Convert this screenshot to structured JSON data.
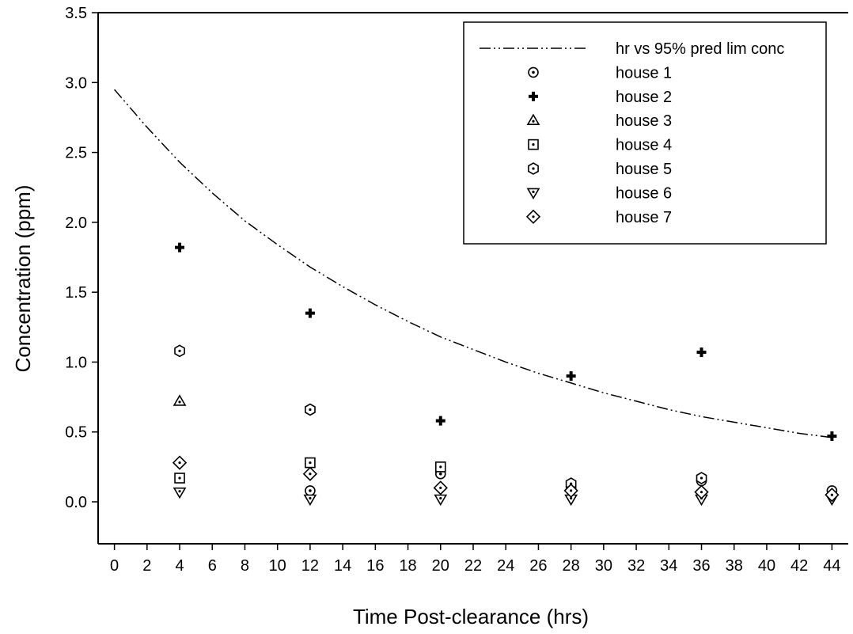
{
  "chart_data": {
    "type": "scatter",
    "title": "",
    "xlabel": "Time Post-clearance (hrs)",
    "ylabel": "Concentration (ppm)",
    "xlim": [
      -1,
      45
    ],
    "ylim": [
      -0.3,
      3.5
    ],
    "x_ticks": [
      0,
      2,
      4,
      6,
      8,
      10,
      12,
      14,
      16,
      18,
      20,
      22,
      24,
      26,
      28,
      30,
      32,
      34,
      36,
      38,
      40,
      42,
      44
    ],
    "y_ticks": [
      0.0,
      0.5,
      1.0,
      1.5,
      2.0,
      2.5,
      3.0,
      3.5
    ],
    "y_tick_labels": [
      "0.0",
      "0.5",
      "1.0",
      "1.5",
      "2.0",
      "2.5",
      "3.0",
      "3.5"
    ],
    "grid": false,
    "legend_position": "top-right",
    "curve": {
      "name": "hr vs 95% pred lim conc",
      "style": "dash-dot-dot",
      "x": [
        0,
        2,
        4,
        6,
        8,
        10,
        12,
        14,
        16,
        18,
        20,
        22,
        24,
        26,
        28,
        30,
        32,
        34,
        36,
        38,
        40,
        42,
        44
      ],
      "y": [
        2.95,
        2.68,
        2.43,
        2.21,
        2.01,
        1.84,
        1.68,
        1.54,
        1.41,
        1.29,
        1.18,
        1.09,
        1.0,
        0.92,
        0.85,
        0.78,
        0.72,
        0.66,
        0.61,
        0.57,
        0.53,
        0.49,
        0.46
      ]
    },
    "series": [
      {
        "name": "house 1",
        "marker": "dot-circle",
        "x": [
          12,
          20,
          28,
          36,
          44
        ],
        "y": [
          0.08,
          0.2,
          0.1,
          0.15,
          0.08
        ]
      },
      {
        "name": "house 2",
        "marker": "plus",
        "x": [
          4,
          12,
          20,
          28,
          36,
          44
        ],
        "y": [
          1.82,
          1.35,
          0.58,
          0.9,
          1.07,
          0.47
        ]
      },
      {
        "name": "house 3",
        "marker": "triangle-up",
        "x": [
          4
        ],
        "y": [
          0.72
        ]
      },
      {
        "name": "house 4",
        "marker": "square",
        "x": [
          4,
          12,
          20
        ],
        "y": [
          0.17,
          0.28,
          0.25
        ]
      },
      {
        "name": "house 5",
        "marker": "hexagon",
        "x": [
          4,
          12,
          28,
          36
        ],
        "y": [
          1.08,
          0.66,
          0.13,
          0.17
        ]
      },
      {
        "name": "house 6",
        "marker": "triangle-down",
        "x": [
          4,
          12,
          20,
          28,
          36,
          44
        ],
        "y": [
          0.07,
          0.02,
          0.02,
          0.02,
          0.02,
          0.02
        ]
      },
      {
        "name": "house 7",
        "marker": "diamond",
        "x": [
          4,
          12,
          20,
          28,
          36,
          44
        ],
        "y": [
          0.28,
          0.2,
          0.1,
          0.08,
          0.07,
          0.05
        ]
      }
    ]
  }
}
